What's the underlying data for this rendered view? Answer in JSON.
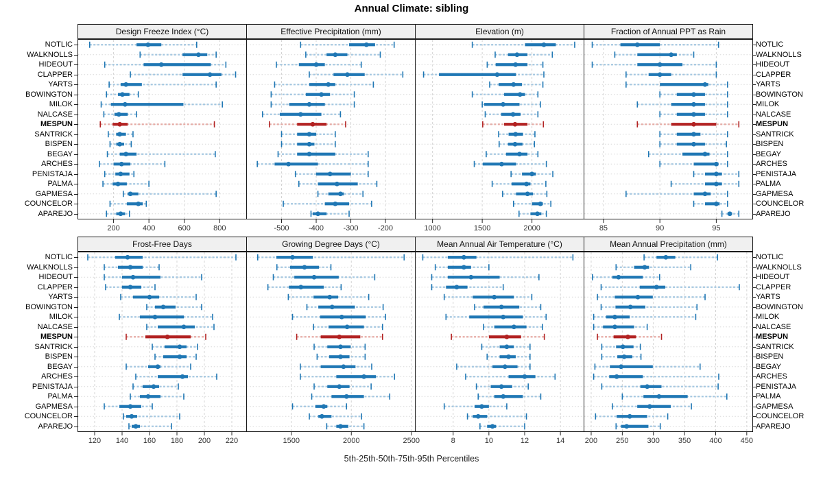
{
  "title": "Annual Climate: sibling",
  "footer": "5th-25th-50th-75th-95th Percentiles",
  "stations": [
    "NOTLIC",
    "WALKNOLLS",
    "HIDEOUT",
    "CLAPPER",
    "YARTS",
    "BOWINGTON",
    "MILOK",
    "NALCASE",
    "MESPUN",
    "SANTRICK",
    "BISPEN",
    "BEGAY",
    "ARCHES",
    "PENISTAJA",
    "PALMA",
    "GAPMESA",
    "COUNCELOR",
    "APAREJO"
  ],
  "highlight_station": "MESPUN",
  "colors": {
    "normal": "#1f77b4",
    "normal_light": "#a5c8e1",
    "highlight": "#b22222",
    "highlight_light": "#e6aba5",
    "grid_vertical": "#d4d4d4",
    "grid_row": "#d8d8d8",
    "panel_header_bg": "#f0f0f0",
    "border": "#1a1a1a",
    "tick_text": "#333333"
  },
  "chart_data": {
    "type": "dot-interval",
    "title": "Annual Climate: sibling",
    "xlabel": "5th-25th-50th-75th-95th Percentiles",
    "percentiles": [
      5,
      25,
      50,
      75,
      95
    ],
    "layout": "2 rows x 4 columns, shared station axis, vertical dashed grid, dotted row guides",
    "panels": [
      {
        "title": "Design Freeze Index (°C)",
        "xlim": [
          0,
          950
        ],
        "ticks": [
          200,
          400,
          600,
          800
        ],
        "series": [
          [
            65,
            330,
            395,
            470,
            670
          ],
          [
            350,
            590,
            680,
            730,
            780
          ],
          [
            150,
            370,
            470,
            750,
            835
          ],
          [
            295,
            590,
            745,
            810,
            890
          ],
          [
            175,
            240,
            270,
            360,
            780
          ],
          [
            160,
            225,
            250,
            290,
            340
          ],
          [
            130,
            185,
            265,
            595,
            815
          ],
          [
            145,
            205,
            230,
            280,
            330
          ],
          [
            125,
            195,
            235,
            280,
            770
          ],
          [
            170,
            215,
            235,
            270,
            310
          ],
          [
            180,
            215,
            235,
            260,
            300
          ],
          [
            165,
            235,
            270,
            330,
            775
          ],
          [
            120,
            200,
            245,
            295,
            490
          ],
          [
            150,
            210,
            240,
            290,
            315
          ],
          [
            140,
            195,
            225,
            275,
            400
          ],
          [
            255,
            280,
            295,
            340,
            780
          ],
          [
            180,
            275,
            340,
            365,
            385
          ],
          [
            160,
            215,
            240,
            265,
            290
          ]
        ]
      },
      {
        "title": "Effective Precipitation (mm)",
        "xlim": [
          -600,
          -115
        ],
        "ticks": [
          -500,
          -400,
          -300,
          -200
        ],
        "series": [
          [
            -445,
            -305,
            -255,
            -230,
            -175
          ],
          [
            -430,
            -370,
            -345,
            -310,
            -215
          ],
          [
            -515,
            -450,
            -400,
            -375,
            -270
          ],
          [
            -420,
            -350,
            -310,
            -260,
            -150
          ],
          [
            -520,
            -420,
            -365,
            -345,
            -235
          ],
          [
            -530,
            -430,
            -385,
            -360,
            -290
          ],
          [
            -530,
            -478,
            -420,
            -375,
            -290
          ],
          [
            -555,
            -505,
            -445,
            -385,
            -330
          ],
          [
            -535,
            -455,
            -410,
            -370,
            -315
          ],
          [
            -500,
            -455,
            -420,
            -400,
            -345
          ],
          [
            -500,
            -455,
            -420,
            -405,
            -345
          ],
          [
            -510,
            -455,
            -420,
            -345,
            -250
          ],
          [
            -570,
            -520,
            -480,
            -395,
            -250
          ],
          [
            -460,
            -400,
            -360,
            -300,
            -250
          ],
          [
            -450,
            -395,
            -340,
            -280,
            -225
          ],
          [
            -395,
            -365,
            -330,
            -320,
            -265
          ],
          [
            -495,
            -375,
            -345,
            -305,
            -240
          ],
          [
            -415,
            -410,
            -395,
            -370,
            -305
          ]
        ]
      },
      {
        "title": "Elevation (m)",
        "xlim": [
          830,
          2520
        ],
        "ticks": [
          1000,
          1500,
          2000
        ],
        "series": [
          [
            1400,
            1930,
            2120,
            2240,
            2430
          ],
          [
            1630,
            1760,
            1850,
            1955,
            2205
          ],
          [
            1550,
            1635,
            1835,
            1955,
            2110
          ],
          [
            910,
            1065,
            1650,
            1840,
            2120
          ],
          [
            1575,
            1665,
            1815,
            1900,
            2110
          ],
          [
            1400,
            1720,
            1880,
            1930,
            2060
          ],
          [
            1500,
            1520,
            1710,
            1875,
            2085
          ],
          [
            1530,
            1690,
            1810,
            1885,
            2060
          ],
          [
            1505,
            1720,
            1830,
            1955,
            2115
          ],
          [
            1665,
            1765,
            1835,
            1910,
            2030
          ],
          [
            1670,
            1760,
            1830,
            1905,
            2025
          ],
          [
            1540,
            1740,
            1875,
            1955,
            2060
          ],
          [
            1420,
            1505,
            1695,
            1840,
            2145
          ],
          [
            1790,
            1900,
            2000,
            2040,
            2210
          ],
          [
            1600,
            1795,
            1945,
            1985,
            2140
          ],
          [
            1705,
            1840,
            1955,
            2010,
            2150
          ],
          [
            1815,
            2000,
            2085,
            2110,
            2190
          ],
          [
            1870,
            1985,
            2055,
            2095,
            2145
          ]
        ]
      },
      {
        "title": "Fraction of Annual PPT as Rain",
        "xlim": [
          83.3,
          98.2
        ],
        "ticks": [
          85,
          90,
          95
        ],
        "series": [
          [
            84,
            86.5,
            88,
            90,
            95.2
          ],
          [
            86,
            88,
            91,
            91.5,
            93
          ],
          [
            84,
            88,
            90,
            92,
            95
          ],
          [
            87,
            89,
            90,
            91,
            95
          ],
          [
            87,
            90,
            94,
            94.3,
            96
          ],
          [
            90,
            91.5,
            93,
            94,
            96
          ],
          [
            88,
            91,
            93,
            94,
            96
          ],
          [
            90,
            91.5,
            93,
            94,
            96
          ],
          [
            88,
            91,
            93,
            95,
            97
          ],
          [
            90,
            91.5,
            93,
            93.6,
            96
          ],
          [
            90,
            91.5,
            93,
            94,
            95.9
          ],
          [
            89,
            92,
            94,
            94.4,
            96
          ],
          [
            90,
            93,
            95,
            95.2,
            96
          ],
          [
            93,
            94,
            95,
            95.5,
            97
          ],
          [
            91,
            94,
            95,
            95.5,
            97
          ],
          [
            87,
            93,
            94,
            94.5,
            96
          ],
          [
            93,
            94,
            95,
            95.3,
            96
          ],
          [
            95.5,
            96,
            96.2,
            96.4,
            97
          ]
        ]
      },
      {
        "title": "Frost-Free Days",
        "xlim": [
          108,
          230.5
        ],
        "ticks": [
          120,
          140,
          160,
          180,
          200,
          220
        ],
        "series": [
          [
            115,
            135,
            144,
            155,
            223
          ],
          [
            127,
            137,
            146,
            155,
            167
          ],
          [
            127,
            140,
            148,
            168,
            198
          ],
          [
            128,
            140,
            146,
            154,
            164
          ],
          [
            139,
            148,
            160,
            167,
            194
          ],
          [
            158,
            164,
            170,
            179,
            198
          ],
          [
            138,
            153,
            164,
            185,
            206
          ],
          [
            158,
            166,
            185,
            193,
            207
          ],
          [
            143,
            157,
            173,
            190,
            201
          ],
          [
            162,
            171,
            182,
            187,
            195
          ],
          [
            164,
            170,
            182,
            187,
            194
          ],
          [
            143,
            159,
            166,
            168,
            190
          ],
          [
            150,
            166,
            184,
            188,
            209
          ],
          [
            148,
            155,
            163,
            167,
            181
          ],
          [
            146,
            153,
            159,
            168,
            185
          ],
          [
            127,
            138,
            146,
            154,
            162
          ],
          [
            141,
            143,
            147,
            151,
            182
          ],
          [
            145,
            147,
            150,
            153,
            176
          ]
        ]
      },
      {
        "title": "Growing Degree Days (°C)",
        "xlim": [
          1130,
          2530
        ],
        "ticks": [
          1500,
          2000,
          2500
        ],
        "series": [
          [
            1220,
            1375,
            1510,
            1680,
            2440
          ],
          [
            1380,
            1490,
            1610,
            1730,
            1830
          ],
          [
            1350,
            1525,
            1690,
            1895,
            2195
          ],
          [
            1305,
            1480,
            1580,
            1770,
            1915
          ],
          [
            1475,
            1685,
            1820,
            1890,
            2145
          ],
          [
            1630,
            1725,
            1840,
            2030,
            2265
          ],
          [
            1510,
            1740,
            1920,
            2120,
            2285
          ],
          [
            1685,
            1810,
            1965,
            2105,
            2260
          ],
          [
            1545,
            1745,
            1900,
            2075,
            2260
          ],
          [
            1690,
            1800,
            1910,
            1995,
            2115
          ],
          [
            1715,
            1815,
            1910,
            1985,
            2115
          ],
          [
            1575,
            1745,
            1935,
            2035,
            2170
          ],
          [
            1575,
            1875,
            2105,
            2205,
            2360
          ],
          [
            1690,
            1800,
            1900,
            1985,
            2165
          ],
          [
            1670,
            1835,
            1960,
            2105,
            2320
          ],
          [
            1510,
            1700,
            1770,
            1800,
            1960
          ],
          [
            1650,
            1725,
            1755,
            1835,
            2085
          ],
          [
            1795,
            1875,
            1910,
            1975,
            2105
          ]
        ]
      },
      {
        "title": "Mean Annual Air Temperature (°C)",
        "xlim": [
          5.9,
          15.3
        ],
        "ticks": [
          8,
          10,
          12,
          14
        ],
        "series": [
          [
            6.3,
            7.7,
            8.6,
            9.3,
            14.7
          ],
          [
            7,
            7.7,
            8.6,
            9,
            10
          ],
          [
            6.8,
            7.7,
            9,
            10.6,
            12.8
          ],
          [
            6.8,
            7.6,
            8.2,
            8.8,
            10.8
          ],
          [
            7.5,
            9.1,
            10.3,
            11.4,
            12.4
          ],
          [
            9.2,
            9.7,
            10.7,
            11.7,
            12.9
          ],
          [
            7.6,
            8.9,
            10.8,
            11.9,
            13.2
          ],
          [
            9.7,
            10.3,
            11.4,
            12.1,
            13
          ],
          [
            7.9,
            10,
            11,
            11.8,
            13.1
          ],
          [
            9.6,
            10.6,
            11,
            11.4,
            12.3
          ],
          [
            9.9,
            10.6,
            11.1,
            11.5,
            12.3
          ],
          [
            8.2,
            10.2,
            10.9,
            11.6,
            12.3
          ],
          [
            8.7,
            11.1,
            12,
            12.6,
            13.7
          ],
          [
            9.3,
            10.1,
            10.7,
            11.3,
            12.2
          ],
          [
            9.4,
            10.3,
            10.8,
            11.9,
            12.9
          ],
          [
            7.5,
            9.2,
            9.6,
            10,
            11
          ],
          [
            8.8,
            9.1,
            9.4,
            9.9,
            12.1
          ],
          [
            9.5,
            9.9,
            10.2,
            10.4,
            12
          ]
        ]
      },
      {
        "title": "Mean Annual Precipitation (mm)",
        "xlim": [
          189,
          459
        ],
        "ticks": [
          200,
          250,
          300,
          350,
          400,
          450
        ],
        "series": [
          [
            285,
            305,
            320,
            335,
            403
          ],
          [
            240,
            269,
            286,
            293,
            360
          ],
          [
            202,
            234,
            244,
            283,
            310
          ],
          [
            216,
            278,
            305,
            319,
            438
          ],
          [
            210,
            238,
            275,
            299,
            383
          ],
          [
            216,
            239,
            263,
            287,
            370
          ],
          [
            204,
            224,
            238,
            262,
            368
          ],
          [
            204,
            219,
            238,
            269,
            290
          ],
          [
            210,
            236,
            259,
            272,
            313
          ],
          [
            217,
            240,
            251,
            268,
            279
          ],
          [
            217,
            242,
            253,
            266,
            280
          ],
          [
            206,
            230,
            248,
            299,
            375
          ],
          [
            204,
            229,
            241,
            283,
            405
          ],
          [
            217,
            279,
            290,
            313,
            404
          ],
          [
            250,
            284,
            309,
            355,
            418
          ],
          [
            234,
            274,
            294,
            328,
            361
          ],
          [
            207,
            241,
            262,
            290,
            323
          ],
          [
            240,
            248,
            257,
            292,
            311
          ]
        ]
      }
    ]
  }
}
